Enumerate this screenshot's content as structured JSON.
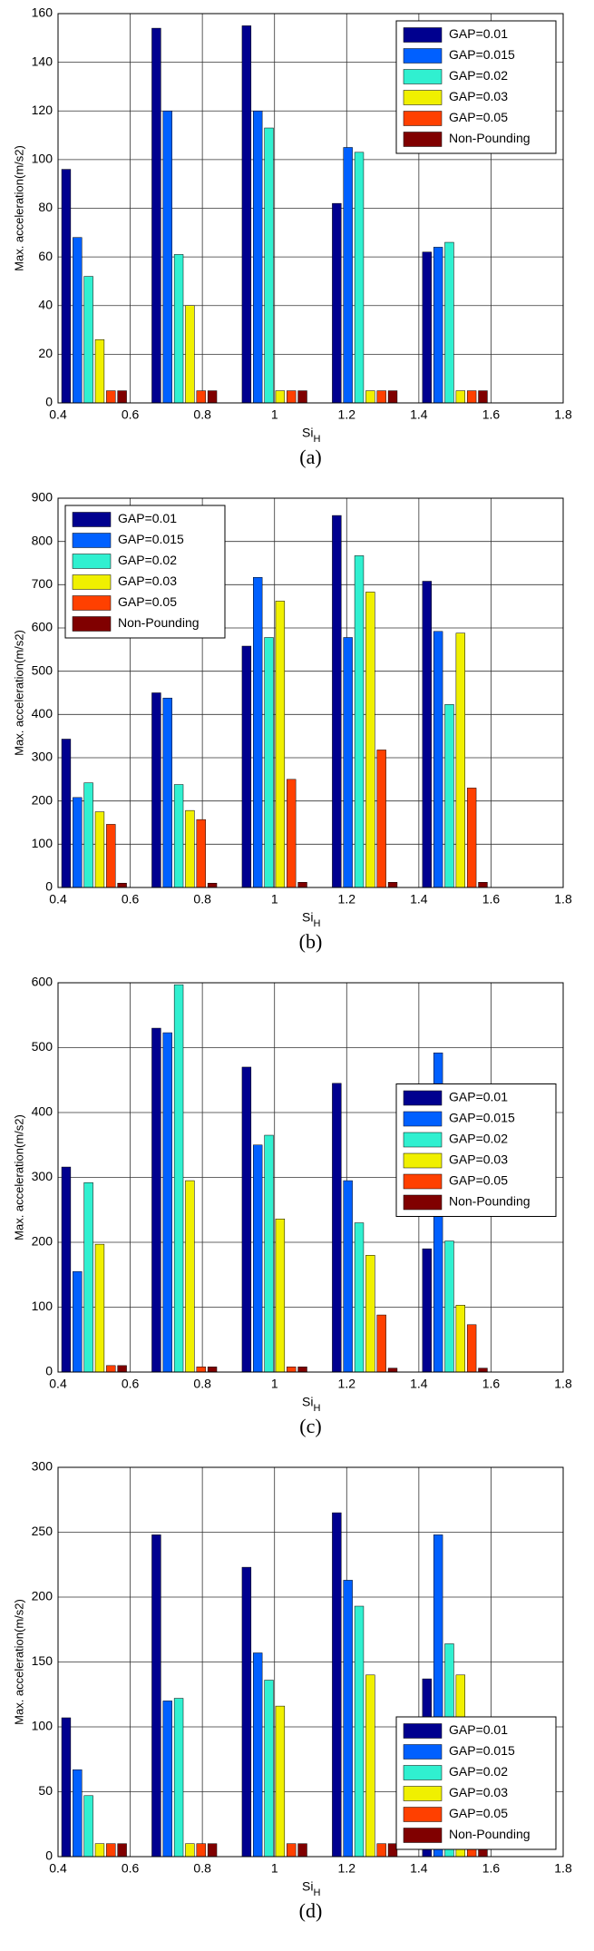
{
  "chart_data": [
    {
      "type": "bar",
      "caption": "(a)",
      "ylabel": "Max. acceleration(m/s2)",
      "xlabel": {
        "main": "Si",
        "sub": "H"
      },
      "x": [
        0.5,
        0.75,
        1,
        1.25,
        1.5
      ],
      "xlim": [
        0.4,
        1.8
      ],
      "xticks": [
        0.4,
        0.6,
        0.8,
        1,
        1.2,
        1.4,
        1.6,
        1.8
      ],
      "ylim": [
        0,
        160
      ],
      "yticks": [
        0,
        20,
        40,
        60,
        80,
        100,
        120,
        140,
        160
      ],
      "grid": true,
      "legend": "upper right",
      "series": [
        {
          "name": "GAP=0.01",
          "color": "#00008f",
          "values": [
            96,
            154,
            155,
            82,
            62
          ]
        },
        {
          "name": "GAP=0.015",
          "color": "#0060ff",
          "values": [
            68,
            120,
            120,
            105,
            64
          ]
        },
        {
          "name": "GAP=0.02",
          "color": "#30f0d0",
          "values": [
            52,
            61,
            113,
            103,
            66
          ]
        },
        {
          "name": "GAP=0.03",
          "color": "#f0f000",
          "values": [
            26,
            40,
            5,
            5,
            5
          ]
        },
        {
          "name": "GAP=0.05",
          "color": "#ff4000",
          "values": [
            5,
            5,
            5,
            5,
            5
          ]
        },
        {
          "name": "Non-Pounding",
          "color": "#800000",
          "values": [
            5,
            5,
            5,
            5,
            5
          ]
        }
      ]
    },
    {
      "type": "bar",
      "caption": "(b)",
      "ylabel": "Max. acceleration(m/s2)",
      "xlabel": {
        "main": "Si",
        "sub": "H"
      },
      "x": [
        0.5,
        0.75,
        1,
        1.25,
        1.5
      ],
      "xlim": [
        0.4,
        1.8
      ],
      "xticks": [
        0.4,
        0.6,
        0.8,
        1,
        1.2,
        1.4,
        1.6,
        1.8
      ],
      "ylim": [
        0,
        900
      ],
      "yticks": [
        0,
        100,
        200,
        300,
        400,
        500,
        600,
        700,
        800,
        900
      ],
      "grid": true,
      "legend": "upper left",
      "series": [
        {
          "name": "GAP=0.01",
          "color": "#00008f",
          "values": [
            343,
            450,
            558,
            860,
            708
          ]
        },
        {
          "name": "GAP=0.015",
          "color": "#0060ff",
          "values": [
            208,
            438,
            717,
            578,
            592
          ]
        },
        {
          "name": "GAP=0.02",
          "color": "#30f0d0",
          "values": [
            242,
            238,
            578,
            767,
            423
          ]
        },
        {
          "name": "GAP=0.03",
          "color": "#f0f000",
          "values": [
            175,
            178,
            662,
            683,
            588
          ]
        },
        {
          "name": "GAP=0.05",
          "color": "#ff4000",
          "values": [
            146,
            157,
            250,
            318,
            230
          ]
        },
        {
          "name": "Non-Pounding",
          "color": "#800000",
          "values": [
            10,
            10,
            12,
            12,
            12
          ]
        }
      ]
    },
    {
      "type": "bar",
      "caption": "(c)",
      "ylabel": "Max. acceleration(m/s2)",
      "xlabel": {
        "main": "Si",
        "sub": "H"
      },
      "x": [
        0.5,
        0.75,
        1,
        1.25,
        1.5
      ],
      "xlim": [
        0.4,
        1.8
      ],
      "xticks": [
        0.4,
        0.6,
        0.8,
        1,
        1.2,
        1.4,
        1.6,
        1.8
      ],
      "ylim": [
        0,
        600
      ],
      "yticks": [
        0,
        100,
        200,
        300,
        400,
        500,
        600
      ],
      "grid": true,
      "legend": "center right",
      "series": [
        {
          "name": "GAP=0.01",
          "color": "#00008f",
          "values": [
            316,
            530,
            470,
            445,
            190
          ]
        },
        {
          "name": "GAP=0.015",
          "color": "#0060ff",
          "values": [
            155,
            523,
            350,
            295,
            492
          ]
        },
        {
          "name": "GAP=0.02",
          "color": "#30f0d0",
          "values": [
            292,
            597,
            365,
            230,
            202
          ]
        },
        {
          "name": "GAP=0.03",
          "color": "#f0f000",
          "values": [
            197,
            295,
            236,
            180,
            103
          ]
        },
        {
          "name": "GAP=0.05",
          "color": "#ff4000",
          "values": [
            10,
            8,
            8,
            88,
            73
          ]
        },
        {
          "name": "Non-Pounding",
          "color": "#800000",
          "values": [
            10,
            8,
            8,
            6,
            6
          ]
        }
      ]
    },
    {
      "type": "bar",
      "caption": "(d)",
      "ylabel": "Max. acceleration(m/s2)",
      "xlabel": {
        "main": "Si",
        "sub": "H"
      },
      "x": [
        0.5,
        0.75,
        1,
        1.25,
        1.5
      ],
      "xlim": [
        0.4,
        1.8
      ],
      "xticks": [
        0.4,
        0.6,
        0.8,
        1,
        1.2,
        1.4,
        1.6,
        1.8
      ],
      "ylim": [
        0,
        300
      ],
      "yticks": [
        0,
        50,
        100,
        150,
        200,
        250,
        300
      ],
      "grid": true,
      "legend": "lower right",
      "series": [
        {
          "name": "GAP=0.01",
          "color": "#00008f",
          "values": [
            107,
            248,
            223,
            265,
            137
          ]
        },
        {
          "name": "GAP=0.015",
          "color": "#0060ff",
          "values": [
            67,
            120,
            157,
            213,
            248
          ]
        },
        {
          "name": "GAP=0.02",
          "color": "#30f0d0",
          "values": [
            47,
            122,
            136,
            193,
            164
          ]
        },
        {
          "name": "GAP=0.03",
          "color": "#f0f000",
          "values": [
            10,
            10,
            116,
            140,
            140
          ]
        },
        {
          "name": "GAP=0.05",
          "color": "#ff4000",
          "values": [
            10,
            10,
            10,
            10,
            10
          ]
        },
        {
          "name": "Non-Pounding",
          "color": "#800000",
          "values": [
            10,
            10,
            10,
            10,
            8
          ]
        }
      ]
    }
  ]
}
